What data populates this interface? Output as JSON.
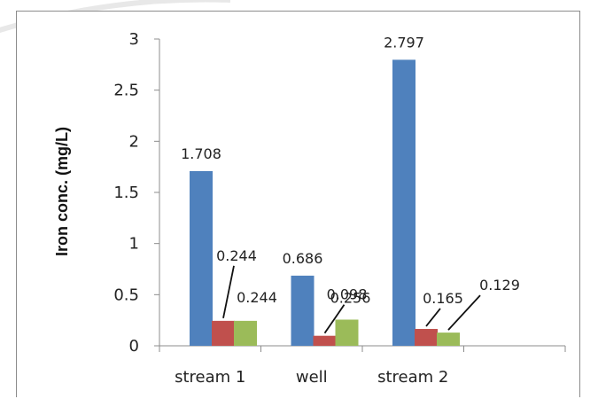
{
  "chart_data": {
    "type": "bar",
    "title": "",
    "xlabel": "",
    "ylabel": "Iron conc. (mg/L)",
    "ylim": [
      0,
      3
    ],
    "yticks": [
      0,
      0.5,
      1,
      1.5,
      2,
      2.5,
      3
    ],
    "ytick_labels": [
      "0",
      "0.5",
      "1",
      "1.5",
      "2",
      "2.5",
      "3"
    ],
    "categories": [
      "stream 1",
      "well",
      "stream 2",
      ""
    ],
    "grid": false,
    "legend": "none",
    "series": [
      {
        "values": [
          1.708,
          0.686,
          2.797,
          null
        ],
        "labels": [
          "1.708",
          "0.686",
          "2.797",
          ""
        ],
        "color": "#4f81bd"
      },
      {
        "values": [
          0.244,
          0.098,
          0.165,
          null
        ],
        "labels": [
          "0.244",
          "0.098",
          "0.165",
          ""
        ],
        "color": "#c0504d"
      },
      {
        "values": [
          0.244,
          0.256,
          0.129,
          null
        ],
        "labels": [
          "0.244",
          "0.256",
          "0.129",
          ""
        ],
        "color": "#9bbb59"
      }
    ]
  }
}
